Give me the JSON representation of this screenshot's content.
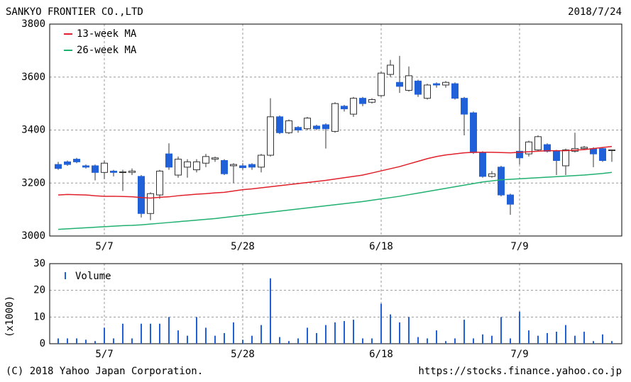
{
  "title": "SANKYO FRONTIER CO.,LTD",
  "date": "2018/7/24",
  "footer": {
    "left": "(C) 2018 Yahoo Japan Corporation.",
    "right": "https://stocks.finance.yahoo.co.jp"
  },
  "chart_data": [
    {
      "type": "candlestick",
      "categories": [
        null,
        null,
        null,
        null,
        null,
        "5/7",
        null,
        null,
        null,
        null,
        null,
        null,
        null,
        null,
        null,
        null,
        null,
        null,
        null,
        null,
        "5/28",
        null,
        null,
        null,
        null,
        null,
        null,
        null,
        null,
        null,
        null,
        null,
        null,
        null,
        null,
        "6/18",
        null,
        null,
        null,
        null,
        null,
        null,
        null,
        null,
        null,
        null,
        null,
        null,
        null,
        null,
        "7/9",
        null,
        null,
        null,
        null,
        null,
        null,
        null,
        null,
        null,
        null
      ],
      "open": [
        3270,
        3280,
        3290,
        3265,
        3265,
        3240,
        3245,
        3240,
        3240,
        3225,
        3085,
        3155,
        3310,
        3230,
        3260,
        3250,
        3275,
        3290,
        3285,
        3265,
        3265,
        3270,
        3260,
        3305,
        3450,
        3390,
        3410,
        3405,
        3415,
        3420,
        3395,
        3490,
        3460,
        3520,
        3505,
        3530,
        3610,
        3580,
        3550,
        3585,
        3520,
        3575,
        3570,
        3575,
        3520,
        3465,
        3315,
        3225,
        3260,
        3155,
        3320,
        3310,
        3325,
        3345,
        3320,
        3265,
        3320,
        3330,
        3330,
        3330,
        3325
      ],
      "high": [
        3280,
        3285,
        3295,
        3270,
        3270,
        3285,
        3250,
        3250,
        3255,
        3230,
        3165,
        3250,
        3350,
        3300,
        3290,
        3290,
        3310,
        3300,
        3290,
        3275,
        3275,
        3275,
        3310,
        3520,
        3455,
        3440,
        3415,
        3450,
        3420,
        3425,
        3505,
        3495,
        3525,
        3525,
        3520,
        3620,
        3665,
        3680,
        3640,
        3590,
        3575,
        3580,
        3585,
        3580,
        3525,
        3470,
        3320,
        3245,
        3265,
        3160,
        3450,
        3360,
        3380,
        3350,
        3325,
        3330,
        3390,
        3340,
        3335,
        3335,
        3325
      ],
      "low": [
        3250,
        3265,
        3275,
        3255,
        3210,
        3215,
        3225,
        3170,
        3230,
        3070,
        3060,
        3140,
        3250,
        3220,
        3220,
        3240,
        3260,
        3280,
        3230,
        3200,
        3250,
        3250,
        3240,
        3300,
        3385,
        3385,
        3390,
        3400,
        3400,
        3330,
        3390,
        3470,
        3450,
        3490,
        3500,
        3525,
        3600,
        3540,
        3545,
        3525,
        3515,
        3560,
        3560,
        3515,
        3380,
        3310,
        3220,
        3220,
        3150,
        3080,
        3270,
        3300,
        3320,
        3315,
        3230,
        3230,
        3315,
        3325,
        3260,
        3280,
        3280
      ],
      "close": [
        3255,
        3270,
        3280,
        3260,
        3240,
        3275,
        3240,
        3242,
        3245,
        3085,
        3160,
        3245,
        3260,
        3290,
        3280,
        3280,
        3300,
        3295,
        3235,
        3270,
        3258,
        3260,
        3305,
        3450,
        3390,
        3435,
        3400,
        3445,
        3405,
        3405,
        3500,
        3480,
        3520,
        3500,
        3515,
        3615,
        3645,
        3565,
        3605,
        3535,
        3570,
        3570,
        3580,
        3520,
        3460,
        3315,
        3225,
        3235,
        3155,
        3120,
        3295,
        3355,
        3375,
        3320,
        3285,
        3325,
        3330,
        3335,
        3310,
        3285,
        3325
      ],
      "up_color": "#ffffff",
      "down_color": "#2060d8",
      "series": [
        {
          "name": "13-week MA",
          "color": "#e0202a",
          "values": [
            3155,
            3157,
            3156,
            3155,
            3152,
            3150,
            3150,
            3149,
            3148,
            3145,
            3143,
            3146,
            3148,
            3152,
            3155,
            3158,
            3160,
            3163,
            3165,
            3170,
            3175,
            3178,
            3182,
            3186,
            3190,
            3194,
            3198,
            3202,
            3206,
            3210,
            3215,
            3220,
            3225,
            3230,
            3238,
            3246,
            3254,
            3262,
            3272,
            3282,
            3292,
            3300,
            3306,
            3310,
            3314,
            3316,
            3316,
            3316,
            3315,
            3314,
            3316,
            3318,
            3320,
            3322,
            3322,
            3322,
            3324,
            3326,
            3330,
            3334,
            3338
          ]
        },
        {
          "name": "26-week MA",
          "color": "#20b070",
          "values": [
            3025,
            3027,
            3029,
            3031,
            3033,
            3035,
            3037,
            3039,
            3040,
            3042,
            3045,
            3048,
            3051,
            3054,
            3057,
            3060,
            3063,
            3066,
            3070,
            3074,
            3078,
            3082,
            3086,
            3090,
            3094,
            3098,
            3102,
            3106,
            3110,
            3114,
            3118,
            3122,
            3126,
            3130,
            3135,
            3140,
            3145,
            3150,
            3156,
            3162,
            3168,
            3174,
            3180,
            3186,
            3192,
            3198,
            3204,
            3208,
            3212,
            3214,
            3216,
            3218,
            3220,
            3222,
            3224,
            3226,
            3228,
            3230,
            3233,
            3236,
            3240
          ]
        }
      ],
      "ylim": [
        3000,
        3800
      ],
      "yticks": [
        3000,
        3200,
        3400,
        3600,
        3800
      ],
      "grid": true,
      "legend": "top-left"
    },
    {
      "type": "bar",
      "categories": [
        null,
        null,
        null,
        null,
        null,
        "5/7",
        null,
        null,
        null,
        null,
        null,
        null,
        null,
        null,
        null,
        null,
        null,
        null,
        null,
        null,
        "5/28",
        null,
        null,
        null,
        null,
        null,
        null,
        null,
        null,
        null,
        null,
        null,
        null,
        null,
        null,
        "6/18",
        null,
        null,
        null,
        null,
        null,
        null,
        null,
        null,
        null,
        null,
        null,
        null,
        null,
        null,
        "7/9",
        null,
        null,
        null,
        null,
        null,
        null,
        null,
        null,
        null,
        null
      ],
      "series": [
        {
          "name": "Volume",
          "color": "#2060d8",
          "values": [
            2,
            2,
            2,
            1.5,
            1,
            6,
            2,
            7.5,
            2,
            7.5,
            7.5,
            7.5,
            10,
            5,
            3,
            10,
            6,
            3,
            4,
            8,
            1.5,
            3,
            7,
            24.5,
            2.5,
            1,
            2,
            6,
            4,
            7,
            8,
            8.5,
            9,
            2,
            2,
            15,
            11,
            8,
            10,
            2.5,
            2,
            5,
            1,
            2,
            9,
            2,
            3.5,
            3,
            10,
            2,
            12,
            5,
            3,
            4,
            4.5,
            7,
            3,
            4.5,
            1,
            3.5,
            1
          ]
        }
      ],
      "y_label": "(x1000)",
      "ylim": [
        0,
        30
      ],
      "yticks": [
        0,
        10,
        20,
        30
      ],
      "grid": true,
      "legend": "top-left"
    }
  ]
}
